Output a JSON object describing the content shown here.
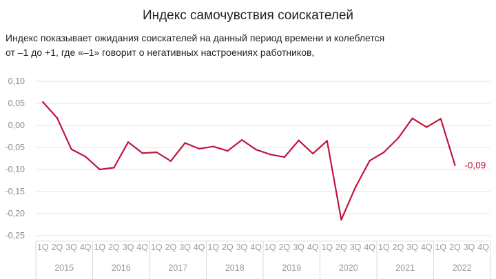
{
  "title": "Индекс самочувствия соискателей",
  "subtitle_lines": [
    "Индекс показывает ожидания соискателей на данный период времени и колеблется",
    "от –1 до +1, где «–1» говорит о негативных настроениях работников,"
  ],
  "chart_data": {
    "type": "line",
    "line_color": "#c0143c",
    "grid": true,
    "ylim": [
      -0.25,
      0.1
    ],
    "yticks": [
      0.1,
      0.05,
      0.0,
      -0.05,
      -0.1,
      -0.15,
      -0.2,
      -0.25
    ],
    "ytick_labels": [
      "0,10",
      "0,05",
      "0,00",
      "-0,05",
      "-0,10",
      "-0,15",
      "-0,20",
      "-0,25"
    ],
    "quarters": [
      "1Q",
      "2Q",
      "3Q",
      "4Q"
    ],
    "years": [
      "2015",
      "2016",
      "2017",
      "2018",
      "2019",
      "2020",
      "2021",
      "2022"
    ],
    "x": [
      "2015 1Q",
      "2015 2Q",
      "2015 3Q",
      "2015 4Q",
      "2016 1Q",
      "2016 2Q",
      "2016 3Q",
      "2016 4Q",
      "2017 1Q",
      "2017 2Q",
      "2017 3Q",
      "2017 4Q",
      "2018 1Q",
      "2018 2Q",
      "2018 3Q",
      "2018 4Q",
      "2019 1Q",
      "2019 2Q",
      "2019 3Q",
      "2019 4Q",
      "2020 1Q",
      "2020 2Q",
      "2020 3Q",
      "2020 4Q",
      "2021 1Q",
      "2021 2Q",
      "2021 3Q",
      "2021 4Q",
      "2022 1Q",
      "2022 2Q"
    ],
    "values": [
      0.053,
      0.017,
      -0.054,
      -0.071,
      -0.1,
      -0.096,
      -0.038,
      -0.063,
      -0.061,
      -0.081,
      -0.04,
      -0.053,
      -0.048,
      -0.058,
      -0.033,
      -0.055,
      -0.066,
      -0.072,
      -0.034,
      -0.064,
      -0.035,
      -0.214,
      -0.14,
      -0.08,
      -0.061,
      -0.029,
      0.016,
      -0.004,
      0.015,
      -0.09
    ],
    "last_value_label": "-0,09"
  }
}
